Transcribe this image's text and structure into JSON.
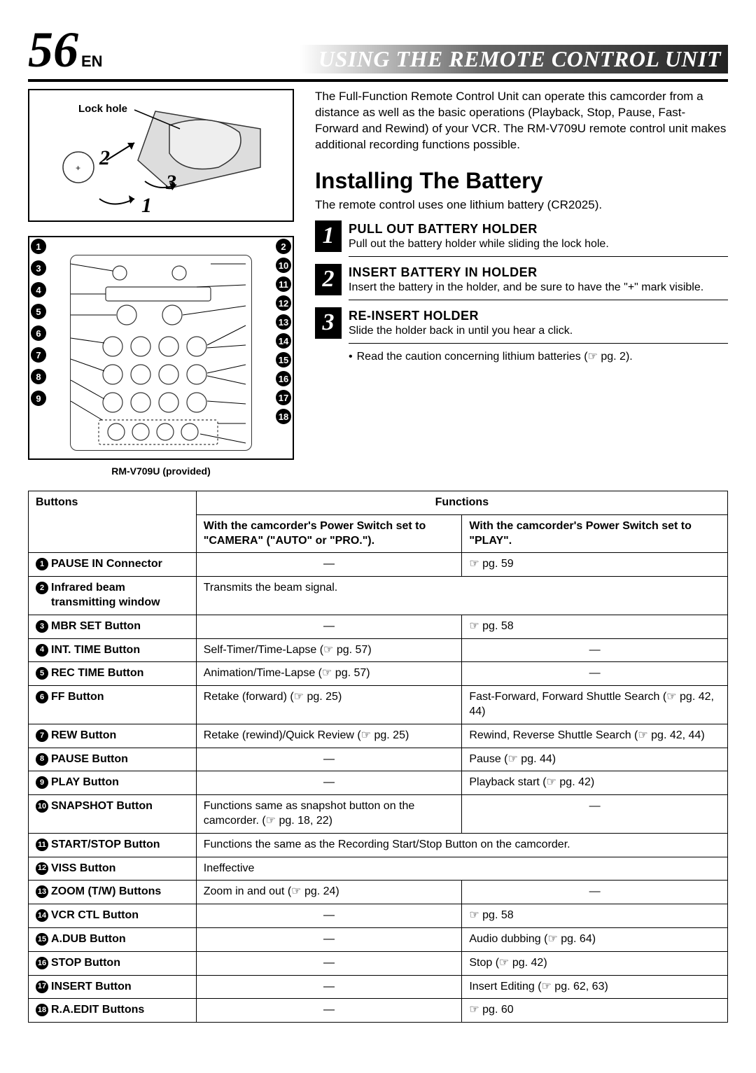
{
  "page_number": "56",
  "page_lang": "EN",
  "title": "USING THE REMOTE CONTROL UNIT",
  "lock_hole_label": "Lock hole",
  "diagram_numbers": [
    "1",
    "2",
    "3"
  ],
  "remote_caption": "RM-V709U (provided)",
  "intro_text": "The Full-Function Remote Control Unit can operate this camcorder from a distance as well as the basic operations (Playback, Stop, Pause, Fast-Forward and Rewind) of your VCR. The RM-V709U remote control unit makes additional recording functions possible.",
  "subhead": "Installing The Battery",
  "subhead_text": "The remote control uses one lithium battery (CR2025).",
  "steps": [
    {
      "num": "1",
      "title": "PULL OUT BATTERY HOLDER",
      "text": "Pull out the battery holder while sliding the lock hole."
    },
    {
      "num": "2",
      "title": "INSERT BATTERY IN HOLDER",
      "text": "Insert the battery in the holder, and be sure to have the \"+\" mark visible."
    },
    {
      "num": "3",
      "title": "RE-INSERT HOLDER",
      "text": "Slide the holder back in until you hear a click."
    }
  ],
  "caution_bullet": "Read the caution concerning lithium batteries (☞ pg. 2).",
  "table": {
    "header_buttons": "Buttons",
    "header_functions": "Functions",
    "header_camera": "With the camcorder's Power Switch set to \"CAMERA\" (\"AUTO\" or \"PRO.\").",
    "header_play": "With the camcorder's Power Switch set to \"PLAY\".",
    "rows": [
      {
        "n": "1",
        "label": "PAUSE IN Connector",
        "c1": "—",
        "c2": "☞ pg. 59",
        "span": false
      },
      {
        "n": "2",
        "label": "Infrared beam transmitting window",
        "c1": "Transmits the beam signal.",
        "c2": "",
        "span": true
      },
      {
        "n": "3",
        "label": "MBR SET Button",
        "c1": "—",
        "c2": "☞ pg. 58",
        "span": false
      },
      {
        "n": "4",
        "label": "INT. TIME Button",
        "c1": "Self-Timer/Time-Lapse (☞ pg. 57)",
        "c2": "—",
        "span": false
      },
      {
        "n": "5",
        "label": "REC TIME Button",
        "c1": "Animation/Time-Lapse (☞ pg. 57)",
        "c2": "—",
        "span": false
      },
      {
        "n": "6",
        "label": "FF Button",
        "c1": "Retake (forward) (☞ pg. 25)",
        "c2": "Fast-Forward, Forward Shuttle Search (☞ pg. 42, 44)",
        "span": false
      },
      {
        "n": "7",
        "label": "REW Button",
        "c1": "Retake (rewind)/Quick Review (☞ pg. 25)",
        "c2": "Rewind, Reverse Shuttle Search (☞ pg. 42, 44)",
        "span": false
      },
      {
        "n": "8",
        "label": "PAUSE Button",
        "c1": "—",
        "c2": "Pause (☞ pg. 44)",
        "span": false
      },
      {
        "n": "9",
        "label": "PLAY Button",
        "c1": "—",
        "c2": "Playback start (☞ pg. 42)",
        "span": false
      },
      {
        "n": "10",
        "label": "SNAPSHOT Button",
        "c1": "Functions same as snapshot button on the camcorder. (☞ pg. 18, 22)",
        "c2": "—",
        "span": false
      },
      {
        "n": "11",
        "label": "START/STOP Button",
        "c1": "Functions the same as the Recording Start/Stop Button on the camcorder.",
        "c2": "",
        "span": true
      },
      {
        "n": "12",
        "label": "VISS Button",
        "c1": "Ineffective",
        "c2": "",
        "span": true
      },
      {
        "n": "13",
        "label": "ZOOM (T/W) Buttons",
        "c1": "Zoom in and out (☞ pg. 24)",
        "c2": "—",
        "span": false
      },
      {
        "n": "14",
        "label": "VCR CTL Button",
        "c1": "—",
        "c2": "☞ pg. 58",
        "span": false
      },
      {
        "n": "15",
        "label": "A.DUB Button",
        "c1": "—",
        "c2": "Audio dubbing (☞ pg. 64)",
        "span": false
      },
      {
        "n": "16",
        "label": "STOP Button",
        "c1": "—",
        "c2": "Stop (☞ pg. 42)",
        "span": false
      },
      {
        "n": "17",
        "label": "INSERT Button",
        "c1": "—",
        "c2": "Insert Editing (☞ pg. 62, 63)",
        "span": false
      },
      {
        "n": "18",
        "label": "R.A.EDIT Buttons",
        "c1": "—",
        "c2": "☞ pg. 60",
        "span": false
      }
    ]
  },
  "callouts_left": [
    "1",
    "3",
    "4",
    "5",
    "6",
    "7",
    "8",
    "9"
  ],
  "callouts_right": [
    "2",
    "10",
    "11",
    "12",
    "13",
    "14",
    "15",
    "16",
    "17",
    "18"
  ]
}
